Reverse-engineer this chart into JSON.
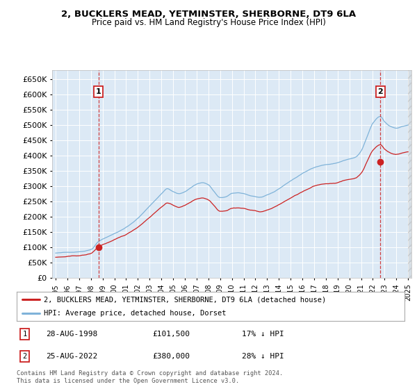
{
  "title": "2, BUCKLERS MEAD, YETMINSTER, SHERBORNE, DT9 6LA",
  "subtitle": "Price paid vs. HM Land Registry's House Price Index (HPI)",
  "ylim": [
    0,
    680000
  ],
  "yticks": [
    0,
    50000,
    100000,
    150000,
    200000,
    250000,
    300000,
    350000,
    400000,
    450000,
    500000,
    550000,
    600000,
    650000
  ],
  "xlim_start": 1994.7,
  "xlim_end": 2025.3,
  "background_color": "#ffffff",
  "plot_bg_color": "#dce9f5",
  "grid_color": "#ffffff",
  "sale1_year": 1998.65,
  "sale1_price": 101500,
  "sale2_year": 2022.65,
  "sale2_price": 380000,
  "hpi_color": "#7fb3d9",
  "price_color": "#cc2222",
  "legend_label1": "2, BUCKLERS MEAD, YETMINSTER, SHERBORNE, DT9 6LA (detached house)",
  "legend_label2": "HPI: Average price, detached house, Dorset",
  "annotation1_date": "28-AUG-1998",
  "annotation1_price": "£101,500",
  "annotation1_hpi": "17% ↓ HPI",
  "annotation2_date": "25-AUG-2022",
  "annotation2_price": "£380,000",
  "annotation2_hpi": "28% ↓ HPI",
  "footer": "Contains HM Land Registry data © Crown copyright and database right 2024.\nThis data is licensed under the Open Government Licence v3.0."
}
